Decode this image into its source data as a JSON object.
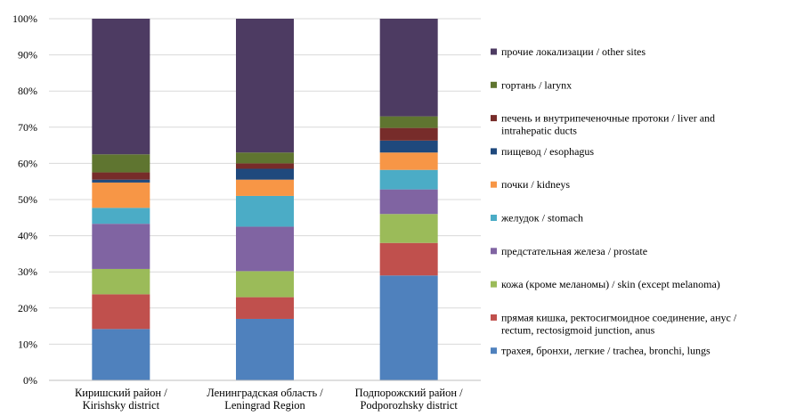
{
  "chart_data": {
    "type": "bar",
    "stacked": true,
    "normalized": true,
    "categories": [
      [
        "Киришский район /",
        "Kirishsky district"
      ],
      [
        "Ленинградская область /",
        "Leningrad Region"
      ],
      [
        "Подпорожский район /",
        "Podporozhsky district"
      ]
    ],
    "ylim": [
      0,
      100
    ],
    "yticks": [
      "0%",
      "10%",
      "20%",
      "30%",
      "40%",
      "50%",
      "60%",
      "70%",
      "80%",
      "90%",
      "100%"
    ],
    "grid": true,
    "legend_position": "right",
    "series": [
      {
        "name": [
          "трахея, бронхи,  легкие / trachea, bronchi,  lungs"
        ],
        "color": "#4F81BD",
        "values": [
          14.2,
          17.0,
          29.0
        ]
      },
      {
        "name": [
          "прямая кишка, ректосигмоидное соединение, анус /",
          "rectum, rectosigmoid junction,  anus"
        ],
        "color": "#C0504D",
        "values": [
          9.6,
          6.0,
          9.0
        ]
      },
      {
        "name": [
          "кожа (кроме меланомы) / skin (except melanoma)"
        ],
        "color": "#9BBB59",
        "values": [
          7.0,
          7.2,
          8.0
        ]
      },
      {
        "name": [
          "предстательная железа / prostate"
        ],
        "color": "#8064A2",
        "values": [
          12.5,
          12.3,
          6.8
        ]
      },
      {
        "name": [
          "желудок / stomach"
        ],
        "color": "#4BACC6",
        "values": [
          4.4,
          8.5,
          5.4
        ]
      },
      {
        "name": [
          "почки / kidneys"
        ],
        "color": "#F79646",
        "values": [
          7.0,
          4.5,
          4.8
        ]
      },
      {
        "name": [
          "пищевод  / esophagus"
        ],
        "color": "#1F497D",
        "values": [
          0.8,
          3.0,
          3.3
        ]
      },
      {
        "name": [
          "печень и внутрипеченочные протоки / liver and",
          "intrahepatic ducts"
        ],
        "color": "#772C2A",
        "values": [
          2.0,
          1.5,
          3.5
        ]
      },
      {
        "name": [
          "гортань / larynx"
        ],
        "color": "#5F7530",
        "values": [
          5.0,
          3.0,
          3.2
        ]
      },
      {
        "name": [
          "прочие локализации  / other sites"
        ],
        "color": "#4D3B62",
        "values": [
          37.5,
          37.0,
          27.0
        ]
      }
    ]
  }
}
